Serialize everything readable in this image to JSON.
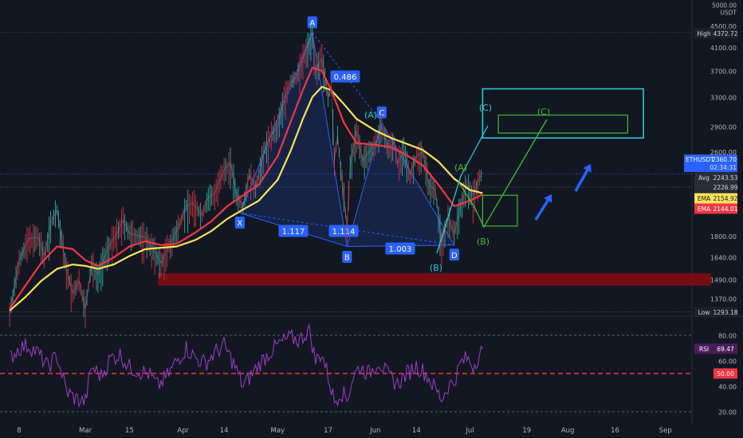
{
  "chart_data": {
    "type": "candlestick",
    "symbol": "ETHUSDT",
    "scale": "log",
    "y_axis": {
      "unit_label": "USDT",
      "top_tick": "5000.00",
      "ticks": [
        {
          "label": "4500.00",
          "value": 4500
        },
        {
          "label": "4100.00",
          "value": 4100
        },
        {
          "label": "3700.00",
          "value": 3700
        },
        {
          "label": "3300.00",
          "value": 3300
        },
        {
          "label": "2900.00",
          "value": 2900
        },
        {
          "label": "2600.00",
          "value": 2600
        },
        {
          "label": "1800.00",
          "value": 1800
        },
        {
          "label": "1640.00",
          "value": 1640
        },
        {
          "label": "1490.00",
          "value": 1490
        },
        {
          "label": "1370.00",
          "value": 1370
        }
      ]
    },
    "x_axis": {
      "ticks": [
        {
          "label": "8",
          "date": "2021-02-08"
        },
        {
          "label": "Mar",
          "date": "2021-03-01"
        },
        {
          "label": "15",
          "date": "2021-03-15"
        },
        {
          "label": "Apr",
          "date": "2021-04-01"
        },
        {
          "label": "14",
          "date": "2021-04-14"
        },
        {
          "label": "May",
          "date": "2021-05-01"
        },
        {
          "label": "17",
          "date": "2021-05-17"
        },
        {
          "label": "Jun",
          "date": "2021-06-01"
        },
        {
          "label": "14",
          "date": "2021-06-14"
        },
        {
          "label": "Jul",
          "date": "2021-07-01"
        },
        {
          "label": "19",
          "date": "2021-07-19"
        },
        {
          "label": "Aug",
          "date": "2021-08-01"
        },
        {
          "label": "16",
          "date": "2021-08-16"
        },
        {
          "label": "Sep",
          "date": "2021-09-01"
        }
      ]
    },
    "price_series": {
      "name": "ETHUSDT",
      "points": [
        [
          "2021-02-05",
          1290
        ],
        [
          "2021-02-08",
          1620
        ],
        [
          "2021-02-11",
          1780
        ],
        [
          "2021-02-14",
          1790
        ],
        [
          "2021-02-16",
          1650
        ],
        [
          "2021-02-18",
          1900
        ],
        [
          "2021-02-20",
          2020
        ],
        [
          "2021-02-23",
          1560
        ],
        [
          "2021-02-25",
          1400
        ],
        [
          "2021-02-27",
          1480
        ],
        [
          "2021-03-01",
          1310
        ],
        [
          "2021-03-03",
          1590
        ],
        [
          "2021-03-05",
          1520
        ],
        [
          "2021-03-08",
          1700
        ],
        [
          "2021-03-11",
          1820
        ],
        [
          "2021-03-13",
          1930
        ],
        [
          "2021-03-15",
          1820
        ],
        [
          "2021-03-18",
          1800
        ],
        [
          "2021-03-20",
          1790
        ],
        [
          "2021-03-23",
          1680
        ],
        [
          "2021-03-25",
          1600
        ],
        [
          "2021-03-27",
          1700
        ],
        [
          "2021-03-30",
          1840
        ],
        [
          "2021-04-02",
          2050
        ],
        [
          "2021-04-04",
          2080
        ],
        [
          "2021-04-07",
          1970
        ],
        [
          "2021-04-09",
          2130
        ],
        [
          "2021-04-11",
          2170
        ],
        [
          "2021-04-14",
          2400
        ],
        [
          "2021-04-16",
          2480
        ],
        [
          "2021-04-18",
          2150
        ],
        [
          "2021-04-20",
          2050
        ],
        [
          "2021-04-22",
          2350
        ],
        [
          "2021-04-24",
          2220
        ],
        [
          "2021-04-27",
          2650
        ],
        [
          "2021-04-29",
          2800
        ],
        [
          "2021-05-01",
          2900
        ],
        [
          "2021-05-03",
          3280
        ],
        [
          "2021-05-05",
          3520
        ],
        [
          "2021-05-07",
          3600
        ],
        [
          "2021-05-09",
          3900
        ],
        [
          "2021-05-11",
          4200
        ],
        [
          "2021-05-12",
          4360
        ],
        [
          "2021-05-13",
          3700
        ],
        [
          "2021-05-15",
          3900
        ],
        [
          "2021-05-17",
          3300
        ],
        [
          "2021-05-18",
          3450
        ],
        [
          "2021-05-19",
          2500
        ],
        [
          "2021-05-20",
          2800
        ],
        [
          "2021-05-21",
          2400
        ],
        [
          "2021-05-23",
          1880
        ],
        [
          "2021-05-24",
          2450
        ],
        [
          "2021-05-26",
          2850
        ],
        [
          "2021-05-28",
          2500
        ],
        [
          "2021-05-30",
          2600
        ],
        [
          "2021-06-01",
          2700
        ],
        [
          "2021-06-03",
          2900
        ],
        [
          "2021-06-05",
          2650
        ],
        [
          "2021-06-07",
          2700
        ],
        [
          "2021-06-08",
          2470
        ],
        [
          "2021-06-10",
          2600
        ],
        [
          "2021-06-12",
          2350
        ],
        [
          "2021-06-14",
          2550
        ],
        [
          "2021-06-16",
          2600
        ],
        [
          "2021-06-18",
          2250
        ],
        [
          "2021-06-20",
          2200
        ],
        [
          "2021-06-22",
          1750
        ],
        [
          "2021-06-24",
          1950
        ],
        [
          "2021-06-26",
          1820
        ],
        [
          "2021-06-28",
          2050
        ],
        [
          "2021-06-30",
          2250
        ],
        [
          "2021-07-02",
          2150
        ],
        [
          "2021-07-04",
          2320
        ],
        [
          "2021-07-05",
          2380
        ]
      ]
    },
    "ema_series": [
      {
        "label": "EMA",
        "value": "2154.92",
        "color": "#f7e35a",
        "points": [
          [
            "2021-02-05",
            1300
          ],
          [
            "2021-02-10",
            1380
          ],
          [
            "2021-02-15",
            1480
          ],
          [
            "2021-02-20",
            1560
          ],
          [
            "2021-02-25",
            1590
          ],
          [
            "2021-03-01",
            1580
          ],
          [
            "2021-03-05",
            1560
          ],
          [
            "2021-03-10",
            1590
          ],
          [
            "2021-03-15",
            1650
          ],
          [
            "2021-03-20",
            1700
          ],
          [
            "2021-03-25",
            1710
          ],
          [
            "2021-03-30",
            1720
          ],
          [
            "2021-04-05",
            1770
          ],
          [
            "2021-04-10",
            1840
          ],
          [
            "2021-04-15",
            1940
          ],
          [
            "2021-04-20",
            2020
          ],
          [
            "2021-04-25",
            2100
          ],
          [
            "2021-05-01",
            2300
          ],
          [
            "2021-05-05",
            2600
          ],
          [
            "2021-05-09",
            3000
          ],
          [
            "2021-05-12",
            3300
          ],
          [
            "2021-05-15",
            3450
          ],
          [
            "2021-05-18",
            3400
          ],
          [
            "2021-05-22",
            3200
          ],
          [
            "2021-05-26",
            3000
          ],
          [
            "2021-06-01",
            2850
          ],
          [
            "2021-06-06",
            2760
          ],
          [
            "2021-06-11",
            2690
          ],
          [
            "2021-06-16",
            2620
          ],
          [
            "2021-06-21",
            2490
          ],
          [
            "2021-06-26",
            2310
          ],
          [
            "2021-07-01",
            2200
          ],
          [
            "2021-07-05",
            2170
          ]
        ]
      },
      {
        "label": "EMA",
        "value": "2144.01",
        "color": "#f23645",
        "points": [
          [
            "2021-02-05",
            1310
          ],
          [
            "2021-02-10",
            1450
          ],
          [
            "2021-02-15",
            1600
          ],
          [
            "2021-02-20",
            1720
          ],
          [
            "2021-02-25",
            1700
          ],
          [
            "2021-03-01",
            1620
          ],
          [
            "2021-03-05",
            1580
          ],
          [
            "2021-03-10",
            1640
          ],
          [
            "2021-03-15",
            1720
          ],
          [
            "2021-03-20",
            1760
          ],
          [
            "2021-03-25",
            1730
          ],
          [
            "2021-03-30",
            1740
          ],
          [
            "2021-04-05",
            1830
          ],
          [
            "2021-04-10",
            1920
          ],
          [
            "2021-04-15",
            2050
          ],
          [
            "2021-04-20",
            2150
          ],
          [
            "2021-04-25",
            2250
          ],
          [
            "2021-05-01",
            2550
          ],
          [
            "2021-05-05",
            2950
          ],
          [
            "2021-05-09",
            3400
          ],
          [
            "2021-05-12",
            3750
          ],
          [
            "2021-05-15",
            3700
          ],
          [
            "2021-05-18",
            3400
          ],
          [
            "2021-05-22",
            2950
          ],
          [
            "2021-05-26",
            2700
          ],
          [
            "2021-06-01",
            2680
          ],
          [
            "2021-06-06",
            2650
          ],
          [
            "2021-06-11",
            2560
          ],
          [
            "2021-06-16",
            2450
          ],
          [
            "2021-06-21",
            2250
          ],
          [
            "2021-06-26",
            2050
          ],
          [
            "2021-07-01",
            2100
          ],
          [
            "2021-07-05",
            2160
          ]
        ]
      }
    ],
    "price_labels": {
      "high": {
        "label": "High",
        "value": "4372.72"
      },
      "last": {
        "label": "ETHUSDT",
        "value": "2360.70",
        "countdown": "02:34:31"
      },
      "avg": {
        "label": "Avg",
        "value": "2243.53"
      },
      "level": {
        "value": "2226.99"
      },
      "low": {
        "label": "Low",
        "value": "1293.18"
      }
    },
    "harmonic_pattern": {
      "points": [
        {
          "label": "X",
          "date": "2021-04-19",
          "price": 1990
        },
        {
          "label": "A",
          "date": "2021-05-12",
          "price": 4370
        },
        {
          "label": "B",
          "date": "2021-05-23",
          "price": 1720
        },
        {
          "label": "C",
          "date": "2021-06-03",
          "price": 2950
        },
        {
          "label": "D",
          "date": "2021-06-26",
          "price": 1730
        }
      ],
      "ratios": [
        "0.486",
        "1.117",
        "1.114",
        "1.003"
      ]
    },
    "wave_labels": [
      "(A)",
      "(B)",
      "(C)",
      "(A)",
      "(B)",
      "(C)"
    ],
    "target_zones": [
      {
        "kind": "outer",
        "price_low": 2760,
        "price_high": 3420,
        "date_from": "2021-07-05",
        "date_to": "2021-08-25"
      },
      {
        "kind": "inner",
        "price_low": 2820,
        "price_high": 3050,
        "date_from": "2021-07-10",
        "date_to": "2021-08-20"
      },
      {
        "kind": "small",
        "price_low": 1880,
        "price_high": 2150,
        "date_from": "2021-07-05",
        "date_to": "2021-07-16"
      }
    ],
    "support_zone": {
      "price_low": 1450,
      "price_high": 1530
    },
    "rsi": {
      "label": "RSI",
      "value": "69.47",
      "level_label": "50.00",
      "ticks": [
        {
          "label": "80.00",
          "value": 80
        },
        {
          "label": "60.00",
          "value": 60
        },
        {
          "label": "40.00",
          "value": 40
        },
        {
          "label": "20.00",
          "value": 20
        }
      ],
      "points": [
        [
          "2021-02-05",
          62
        ],
        [
          "2021-02-08",
          70
        ],
        [
          "2021-02-11",
          72
        ],
        [
          "2021-02-14",
          66
        ],
        [
          "2021-02-17",
          55
        ],
        [
          "2021-02-20",
          64
        ],
        [
          "2021-02-23",
          36
        ],
        [
          "2021-02-26",
          30
        ],
        [
          "2021-03-01",
          28
        ],
        [
          "2021-03-03",
          55
        ],
        [
          "2021-03-06",
          48
        ],
        [
          "2021-03-09",
          62
        ],
        [
          "2021-03-12",
          65
        ],
        [
          "2021-03-15",
          55
        ],
        [
          "2021-03-18",
          52
        ],
        [
          "2021-03-21",
          50
        ],
        [
          "2021-03-24",
          40
        ],
        [
          "2021-03-27",
          48
        ],
        [
          "2021-03-30",
          60
        ],
        [
          "2021-04-02",
          70
        ],
        [
          "2021-04-05",
          62
        ],
        [
          "2021-04-08",
          58
        ],
        [
          "2021-04-11",
          66
        ],
        [
          "2021-04-14",
          72
        ],
        [
          "2021-04-17",
          58
        ],
        [
          "2021-04-20",
          40
        ],
        [
          "2021-04-23",
          50
        ],
        [
          "2021-04-26",
          60
        ],
        [
          "2021-04-29",
          68
        ],
        [
          "2021-05-02",
          74
        ],
        [
          "2021-05-05",
          78
        ],
        [
          "2021-05-08",
          76
        ],
        [
          "2021-05-11",
          85
        ],
        [
          "2021-05-13",
          60
        ],
        [
          "2021-05-15",
          66
        ],
        [
          "2021-05-17",
          48
        ],
        [
          "2021-05-19",
          28
        ],
        [
          "2021-05-21",
          36
        ],
        [
          "2021-05-23",
          30
        ],
        [
          "2021-05-25",
          48
        ],
        [
          "2021-05-27",
          55
        ],
        [
          "2021-05-30",
          50
        ],
        [
          "2021-06-02",
          60
        ],
        [
          "2021-06-05",
          48
        ],
        [
          "2021-06-08",
          42
        ],
        [
          "2021-06-11",
          50
        ],
        [
          "2021-06-14",
          56
        ],
        [
          "2021-06-17",
          50
        ],
        [
          "2021-06-20",
          38
        ],
        [
          "2021-06-22",
          30
        ],
        [
          "2021-06-24",
          40
        ],
        [
          "2021-06-26",
          44
        ],
        [
          "2021-06-28",
          58
        ],
        [
          "2021-06-30",
          62
        ],
        [
          "2021-07-02",
          56
        ],
        [
          "2021-07-05",
          69.47
        ]
      ]
    }
  }
}
